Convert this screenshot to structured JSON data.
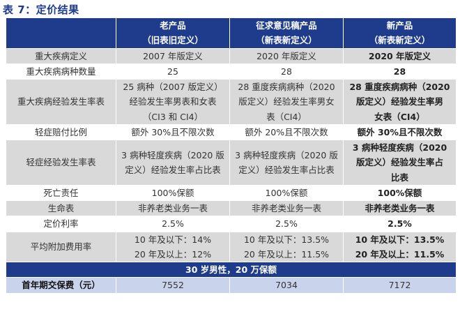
{
  "title": "表 7：定价结果",
  "header": {
    "old": {
      "name": "老产品",
      "sub": "（旧表旧定义）"
    },
    "draft": {
      "name": "征求意见稿产品",
      "sub": "（新表新定义）"
    },
    "new": {
      "name": "新产品",
      "sub": "（新表新定义）"
    }
  },
  "rows": [
    {
      "label": "重大疾病定义",
      "old": "2007 年版定义",
      "draft": "2020 年版定义",
      "new": "2020 年版定义"
    },
    {
      "label": "重大疾病病种数量",
      "old": "25",
      "draft": "28",
      "new": "28"
    },
    {
      "label": "重大疾病经验发生率表",
      "old": [
        "25 病种（2007 版定义）",
        "经验发生率男表和女表",
        "（CI3 和 CI4）"
      ],
      "draft": [
        "28 重度疾病病种（2020",
        "版定义）经验发生率男女",
        "表（CI4）"
      ],
      "new": [
        "28 重度疾病病种（2020",
        "版定义）经验发生率男",
        "女表（CI4）"
      ]
    },
    {
      "label": "轻症赔付比例",
      "old": "额外 30%且不限次数",
      "draft": "额外 20%且不限次数",
      "new": "额外 30%且不限次数"
    },
    {
      "label": "轻症经验发生率表",
      "old": [
        "3 病种轻度疾病（2020 版",
        "定义）经验发生率占比表"
      ],
      "draft": [
        "3 病种轻度疾病（2020 版",
        "定义）经验发生率占比表"
      ],
      "new": [
        "3 病种轻度疾病（2020",
        "版定义）经验发生率占",
        "比表"
      ]
    },
    {
      "label": "死亡责任",
      "old": "100%保额",
      "draft": "100%保额",
      "new": "100%保额"
    },
    {
      "label": "生命表",
      "old": "非养老类业务一表",
      "draft": "非养老类业务一表",
      "new": "非养老类业务一表"
    },
    {
      "label": "定价利率",
      "old": "2.5%",
      "draft": "2.5%",
      "new": "2.5%"
    },
    {
      "label": "平均附加费用率",
      "old": [
        "10 年及以下：14%",
        "20 年及以上：12%"
      ],
      "draft": [
        "10 年及以下：13.5%",
        "20 年及以上：11.5%"
      ],
      "new": [
        "10 年及以下：13.5%",
        "20 年及以上：11.5%"
      ]
    }
  ],
  "section": "30 岁男性，20 万保额",
  "premium": {
    "label": "首年期交保费（元）",
    "old": "7552",
    "draft": "7034",
    "new": "7172"
  },
  "colors": {
    "header_blue": "#1f3c8c",
    "row_gray": "#d9d9d9",
    "premium_bg": "#c9d3ec"
  }
}
